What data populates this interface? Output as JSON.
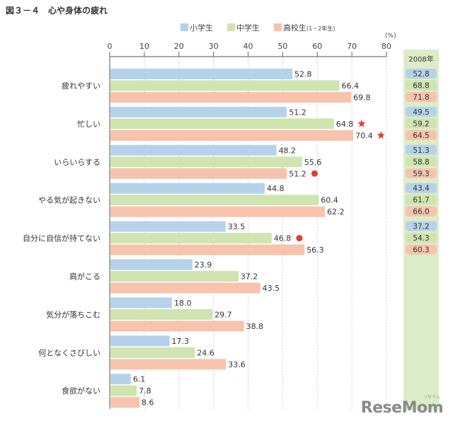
{
  "title": "図３－４　心や身体の疲れ",
  "chart_data": {
    "type": "bar",
    "orientation": "horizontal",
    "unit": "(%)",
    "xlim": [
      0,
      80
    ],
    "ticks": [
      0,
      10,
      20,
      30,
      40,
      50,
      60,
      70,
      80
    ],
    "grid": true,
    "legend_position": "top",
    "categories": [
      "疲れやすい",
      "忙しい",
      "いらいらする",
      "やる気が起きない",
      "自分に自信が持てない",
      "肩がこる",
      "気分が落ちこむ",
      "何となくさびしい",
      "食欲がない"
    ],
    "series": [
      {
        "name": "小学生",
        "color": "#b6d2ea",
        "values": [
          52.8,
          51.2,
          48.2,
          44.8,
          33.5,
          23.9,
          18.0,
          17.3,
          6.1
        ],
        "labels": [
          "52.8",
          "51.2",
          "48.2",
          "44.8",
          "33.5",
          "23.9",
          "18.0",
          "17.3",
          "6.1"
        ]
      },
      {
        "name": "中学生",
        "color": "#cfe4b0",
        "values": [
          66.4,
          64.8,
          55.6,
          60.4,
          46.8,
          37.2,
          29.7,
          24.6,
          7.8
        ],
        "labels": [
          "66.4",
          "64.8",
          "55.6",
          "60.4",
          "46.8",
          "37.2",
          "29.7",
          "24.6",
          "7.8"
        ]
      },
      {
        "name": "高校生",
        "name_note": "(1・2年生)",
        "color": "#f7c3ad",
        "values": [
          69.8,
          70.4,
          51.2,
          62.2,
          56.3,
          43.5,
          38.8,
          33.6,
          8.6
        ],
        "labels": [
          "69.8",
          "70.4",
          "51.2",
          "62.2",
          "56.3",
          "43.5",
          "38.8",
          "33.6",
          "8.6"
        ]
      }
    ],
    "markers": [
      {
        "category": 1,
        "series": 1,
        "shape": "star"
      },
      {
        "category": 1,
        "series": 2,
        "shape": "star"
      },
      {
        "category": 2,
        "series": 2,
        "shape": "dot"
      },
      {
        "category": 4,
        "series": 1,
        "shape": "dot"
      }
    ],
    "marker_color": "#e63a2b",
    "comparison": {
      "title": "2008年",
      "panel_color": "#dcecc8",
      "rows": [
        [
          "52.8",
          "68.8",
          "71.8"
        ],
        [
          "49.5",
          "59.2",
          "64.5"
        ],
        [
          "51.3",
          "58.8",
          "59.3"
        ],
        [
          "43.4",
          "61.7",
          "66.0"
        ],
        [
          "37.2",
          "54.3",
          "60.3"
        ]
      ]
    }
  },
  "watermark": {
    "text": "ReseMom",
    "sub": "リセマム"
  }
}
